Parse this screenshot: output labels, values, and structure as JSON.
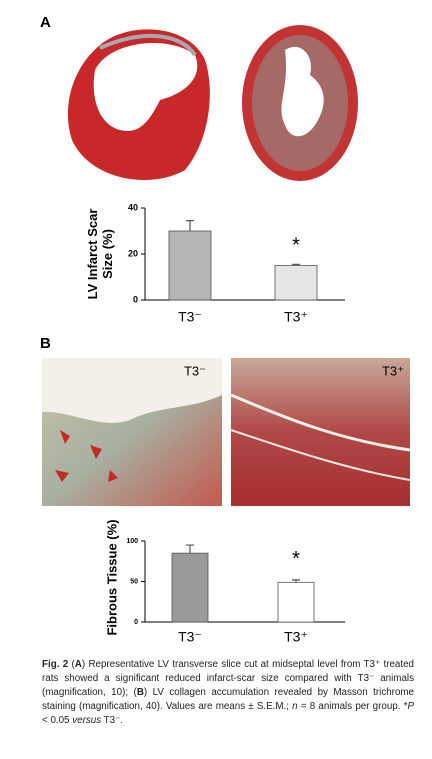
{
  "panels": {
    "a": "A",
    "b": "B"
  },
  "image_labels": {
    "left": "T3⁻",
    "right": "T3⁺"
  },
  "chart_data": [
    {
      "type": "bar",
      "ylabel": "LV Infarct Scar Size (%)",
      "categories": [
        "T3⁻",
        "T3⁺"
      ],
      "values": [
        30,
        15
      ],
      "errors": [
        4.5,
        0.5
      ],
      "colors": [
        "#b5b5b5",
        "#e6e6e6"
      ],
      "ylim": [
        0,
        40
      ],
      "yticks": [
        0,
        20,
        40
      ],
      "annotation": "*"
    },
    {
      "type": "bar",
      "ylabel": "Fibrous Tissue (%)",
      "categories": [
        "T3⁻",
        "T3⁺"
      ],
      "values": [
        85,
        49
      ],
      "errors": [
        10,
        3
      ],
      "colors": [
        "#9a9a9a",
        "#ffffff"
      ],
      "ylim": [
        0,
        100
      ],
      "yticks": [
        0,
        50,
        100
      ],
      "annotation": "*"
    }
  ],
  "caption": {
    "runs": [
      "Fig. 2",
      " (",
      "A",
      ") Representative LV transverse slice cut at midseptal level from T3⁺ treated rats showed a significant reduced infarct-scar size compared with T3⁻ animals (magnification, 10); (",
      "B",
      ") LV collagen accumulation revealed by Masson trichrome staining (magnification, 40). Values are means ± S.E.M.; ",
      "n",
      " = 8 animals per group. *",
      "P",
      " < 0.05 ",
      "versus",
      " T3⁻."
    ]
  }
}
